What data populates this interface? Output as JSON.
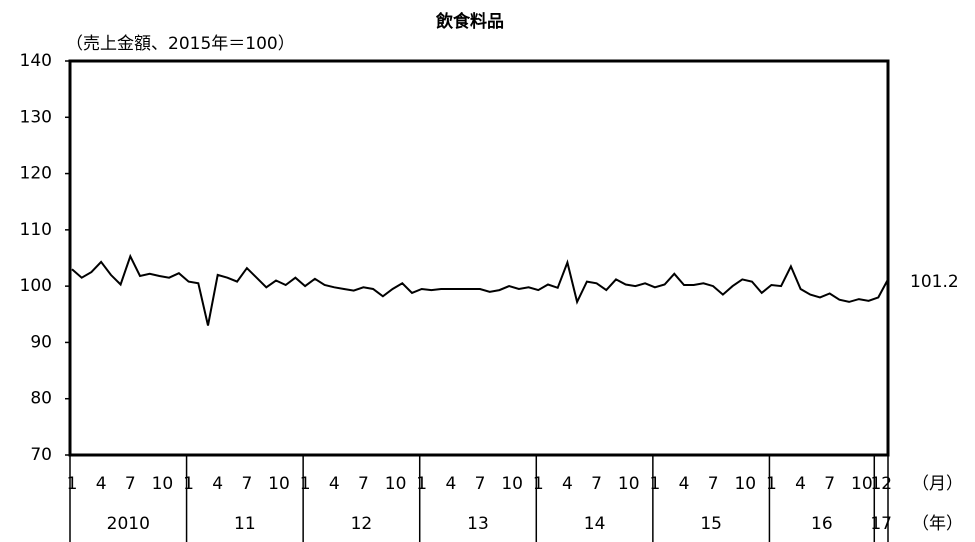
{
  "chart_data": {
    "type": "line",
    "title": "飲食料品",
    "y_axis_label": "（売上金額、2015年＝100）",
    "month_unit_label": "（月）",
    "year_unit_label": "（年）",
    "annotation": "101.2",
    "categories": [
      "1",
      null,
      null,
      "4",
      null,
      null,
      "7",
      null,
      null,
      "10",
      null,
      null,
      "1",
      null,
      null,
      "4",
      null,
      null,
      "7",
      null,
      null,
      "10",
      null,
      null,
      "1",
      null,
      null,
      "4",
      null,
      null,
      "7",
      null,
      null,
      "10",
      null,
      null,
      "1",
      null,
      null,
      "4",
      null,
      null,
      "7",
      null,
      null,
      "10",
      null,
      null,
      "1",
      null,
      null,
      "4",
      null,
      null,
      "7",
      null,
      null,
      "10",
      null,
      null,
      "1",
      null,
      null,
      "4",
      null,
      null,
      "7",
      null,
      null,
      "10",
      null,
      null,
      "1",
      null,
      null,
      "4",
      null,
      null,
      "7",
      null,
      null,
      "10",
      null,
      "12",
      null
    ],
    "years": [
      "2010",
      "11",
      "12",
      "13",
      "14",
      "15",
      "16",
      "17"
    ],
    "series": [
      {
        "name": "飲食料品",
        "color": "#000000",
        "values": [
          103,
          101.5,
          102.5,
          104.3,
          102,
          100.3,
          105.3,
          101.8,
          102.2,
          101.8,
          101.5,
          102.3,
          100.8,
          100.5,
          93,
          102,
          101.5,
          100.8,
          103.2,
          101.5,
          99.8,
          101,
          100.2,
          101.5,
          100,
          101.3,
          100.2,
          99.8,
          99.5,
          99.2,
          99.8,
          99.5,
          98.2,
          99.5,
          100.5,
          98.8,
          99.5,
          99.3,
          99.5,
          99.5,
          99.5,
          99.5,
          99.5,
          99,
          99.3,
          100,
          99.5,
          99.8,
          99.3,
          100.3,
          99.7,
          104.2,
          97.2,
          100.8,
          100.5,
          99.3,
          101.2,
          100.3,
          100,
          100.5,
          99.8,
          100.3,
          102.2,
          100.2,
          100.2,
          100.5,
          100,
          98.5,
          100,
          101.2,
          100.8,
          98.8,
          100.2,
          100,
          103.5,
          99.5,
          98.5,
          98,
          98.7,
          97.6,
          97.2,
          97.7,
          97.4,
          98,
          101.2
        ]
      }
    ],
    "ylim": [
      70,
      140
    ],
    "yticks": [
      70,
      80,
      90,
      100,
      110,
      120,
      130,
      140
    ]
  }
}
